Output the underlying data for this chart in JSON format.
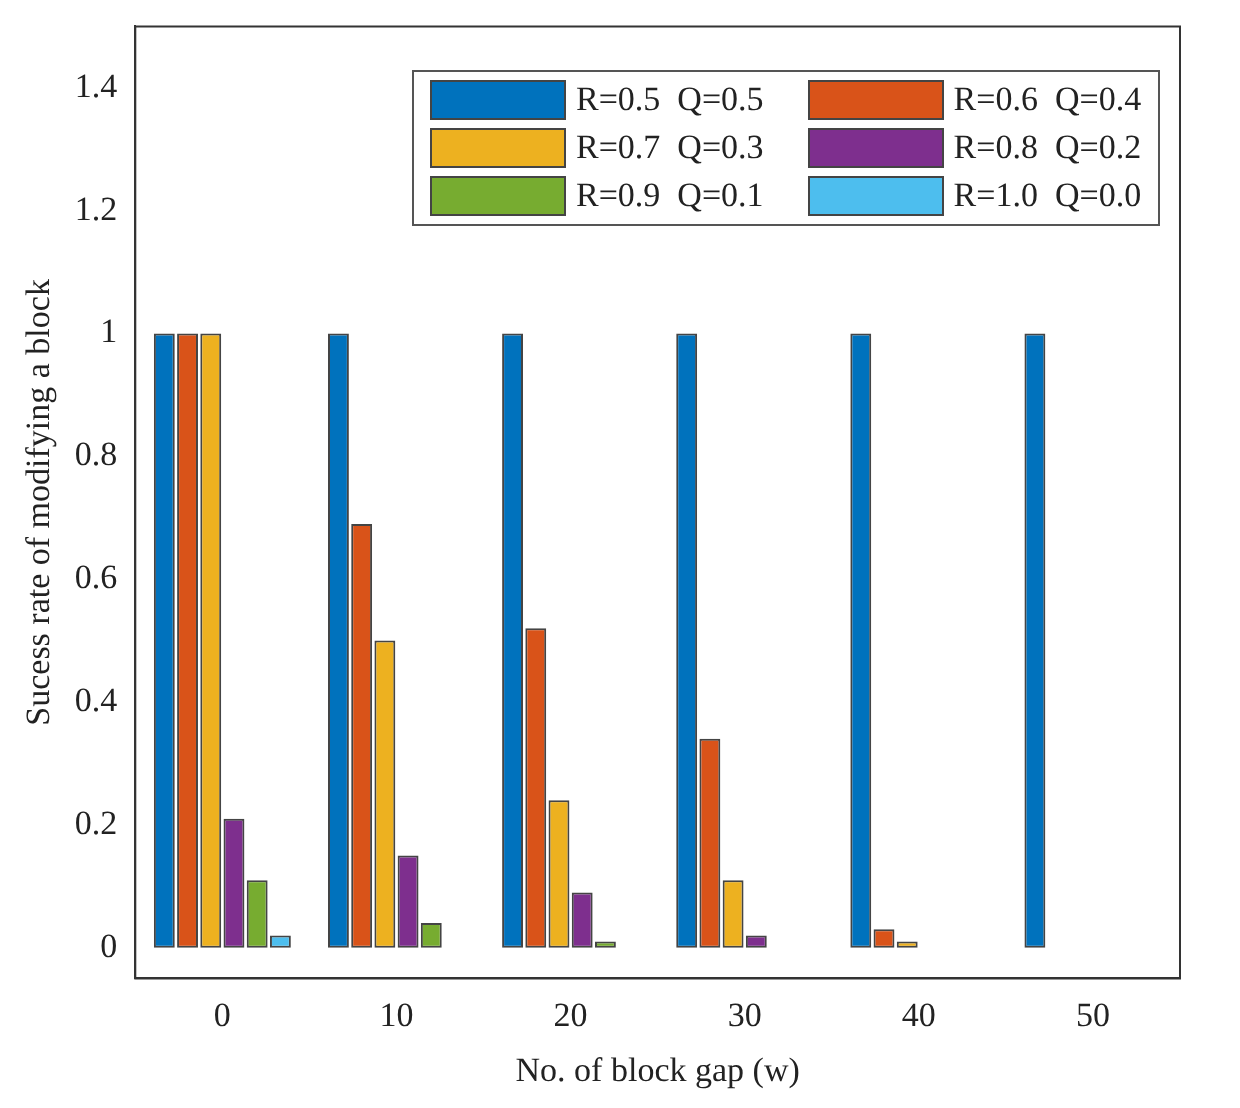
{
  "chart_data": {
    "type": "bar",
    "xlabel": "No. of block gap (w)",
    "ylabel": "Sucess rate of modifying a block",
    "categories": [
      "0",
      "10",
      "20",
      "30",
      "40",
      "50"
    ],
    "series": [
      {
        "name": "R=0.5  Q=0.5",
        "color": "#0072bd",
        "values": [
          1,
          1,
          1,
          1,
          1,
          1
        ]
      },
      {
        "name": "R=0.6  Q=0.4",
        "color": "#d95319",
        "values": [
          1,
          0.69,
          0.52,
          0.34,
          0.03,
          0
        ]
      },
      {
        "name": "R=0.7  Q=0.3",
        "color": "#edb120",
        "values": [
          1,
          0.5,
          0.24,
          0.11,
          0.01,
          0
        ]
      },
      {
        "name": "R=0.8  Q=0.2",
        "color": "#7e2f8e",
        "values": [
          0.21,
          0.15,
          0.09,
          0.02,
          0,
          0
        ]
      },
      {
        "name": "R=0.9  Q=0.1",
        "color": "#77ac30",
        "values": [
          0.11,
          0.04,
          0.01,
          0,
          0,
          0
        ]
      },
      {
        "name": "R=1.0  Q=0.0",
        "color": "#4dbeee",
        "values": [
          0.02,
          0,
          0,
          0,
          0,
          0
        ]
      }
    ],
    "ylim": [
      -0.05,
      1.5
    ],
    "yticks": [
      0,
      0.2,
      0.4,
      0.6,
      0.8,
      1,
      1.2,
      1.4
    ],
    "grid": false,
    "legend": "top right"
  }
}
